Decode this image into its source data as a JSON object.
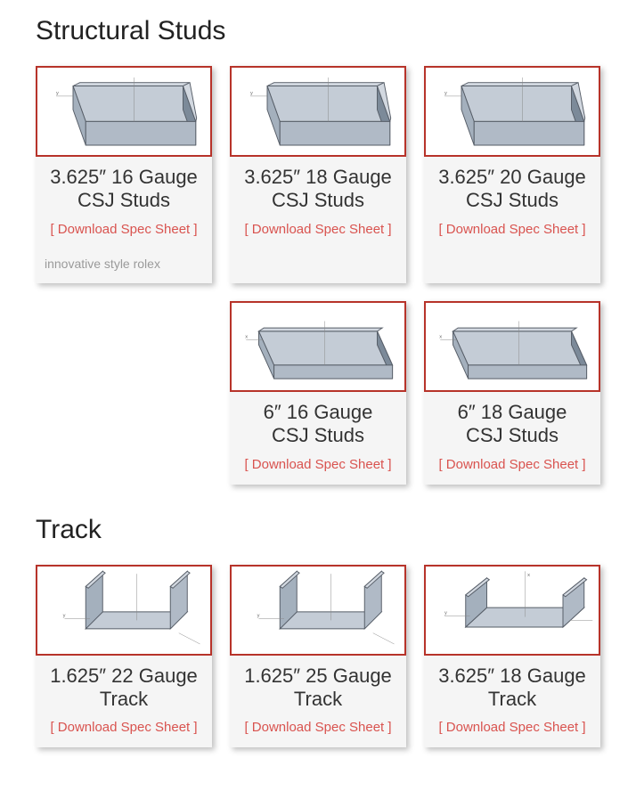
{
  "colors": {
    "card_bg": "#f5f5f5",
    "thumb_border": "#b7332a",
    "link": "#d9534f",
    "title": "#222222",
    "text": "#333333",
    "stud_fill_light": "#c4ccd6",
    "stud_fill_mid": "#a4b0bd",
    "stud_fill_dark": "#7c8a99",
    "stud_stroke": "#555c66"
  },
  "typography": {
    "section_title_size": 30,
    "card_title_size": 22,
    "link_size": 15
  },
  "sections": [
    {
      "title": "Structural Studs",
      "cards": [
        {
          "title": "3.625″ 16 Gauge\nCSJ Studs",
          "link": "[ Download Spec Sheet ]",
          "shape": "stud-narrow",
          "extra": "innovative style rolex"
        },
        {
          "title": "3.625″ 18 Gauge\nCSJ Studs",
          "link": "[ Download Spec Sheet ]",
          "shape": "stud-narrow"
        },
        {
          "title": "3.625″ 20 Gauge\nCSJ Studs",
          "link": "[ Download Spec Sheet ]",
          "shape": "stud-narrow"
        },
        {
          "empty": true
        },
        {
          "title": "6″ 16 Gauge\nCSJ Studs",
          "link": "[ Download Spec Sheet ]",
          "shape": "stud-wide"
        },
        {
          "title": "6″ 18 Gauge\nCSJ Studs",
          "link": "[ Download Spec Sheet ]",
          "shape": "stud-wide"
        }
      ]
    },
    {
      "title": "Track",
      "cards": [
        {
          "title": "1.625″ 22 Gauge\nTrack",
          "link": "[ Download Spec Sheet ]",
          "shape": "track-narrow"
        },
        {
          "title": "1.625″ 25 Gauge\nTrack",
          "link": "[ Download Spec Sheet ]",
          "shape": "track-narrow"
        },
        {
          "title": "3.625″ 18 Gauge\nTrack",
          "link": "[ Download Spec Sheet ]",
          "shape": "track-wide"
        }
      ]
    }
  ]
}
